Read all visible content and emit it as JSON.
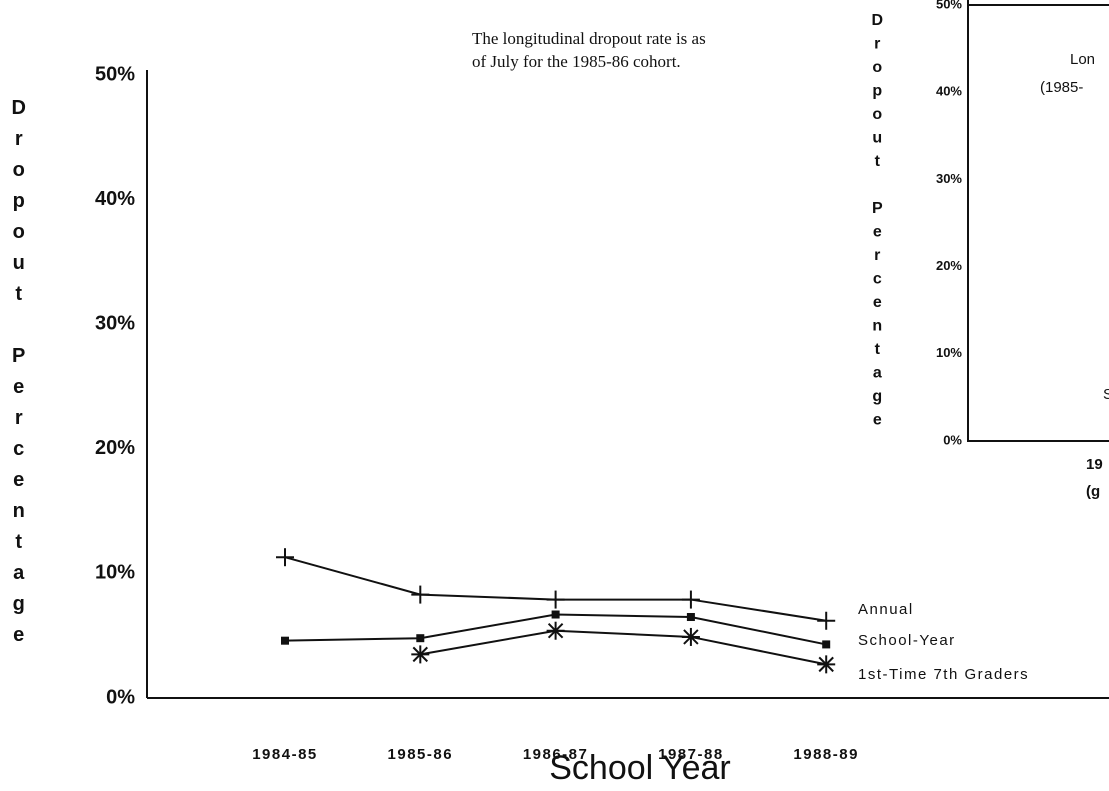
{
  "chart_data": [
    {
      "type": "line",
      "annotation": [
        "The longitudinal dropout rate is as",
        "of July for the 1985-86 cohort."
      ],
      "y_label": "Dropout Percentage",
      "x_label": "School Year",
      "categories": [
        "1984-85",
        "1985-86",
        "1986-87",
        "1987-88",
        "1988-89"
      ],
      "series": [
        {
          "name": "Annual",
          "color": "#111111",
          "marker": "plus",
          "values": [
            11.3,
            8.3,
            7.9,
            7.9,
            6.2
          ]
        },
        {
          "name": "School-Year",
          "color": "#111111",
          "marker": "square",
          "values": [
            4.6,
            4.8,
            6.7,
            6.5,
            4.3
          ]
        },
        {
          "name": "1st-Time 7th Graders",
          "color": "#111111",
          "marker": "asterisk",
          "values": [
            null,
            3.5,
            5.4,
            4.9,
            2.7
          ]
        }
      ],
      "ylim": [
        0,
        50
      ],
      "yticks": [
        {
          "value": 0,
          "label": "0%"
        },
        {
          "value": 10,
          "label": "10%"
        },
        {
          "value": 20,
          "label": "20%"
        },
        {
          "value": 30,
          "label": "30%"
        },
        {
          "value": 40,
          "label": "40%"
        },
        {
          "value": 50,
          "label": "50%"
        }
      ]
    },
    {
      "type": "bar",
      "y_label": "Dropout Percentage",
      "texts": [
        "Lon",
        "(1985-",
        "S",
        "19",
        "(g"
      ],
      "ylim": [
        0,
        50
      ],
      "yticks": [
        {
          "value": 0,
          "label": "0%"
        },
        {
          "value": 10,
          "label": "10%"
        },
        {
          "value": 20,
          "label": "20%"
        },
        {
          "value": 30,
          "label": "30%"
        },
        {
          "value": 40,
          "label": "40%"
        },
        {
          "value": 50,
          "label": "50%"
        }
      ]
    }
  ]
}
